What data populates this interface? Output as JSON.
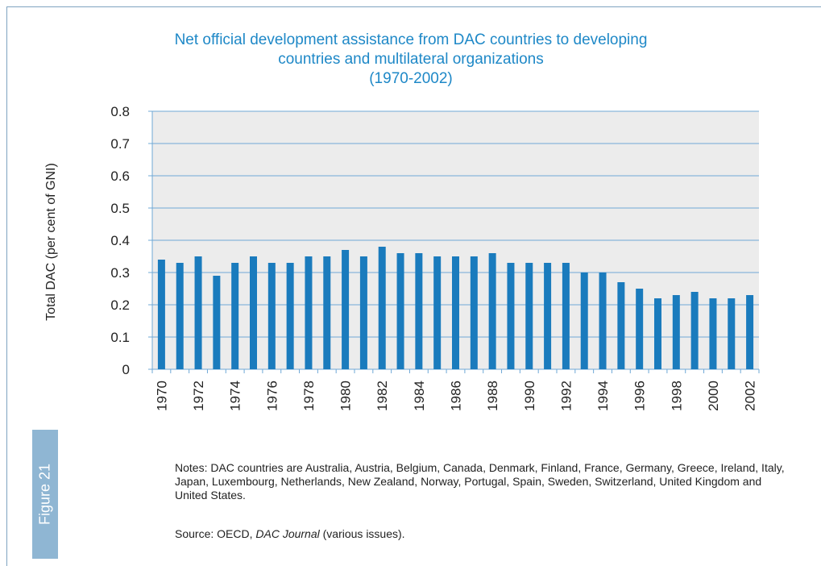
{
  "figure_label": "Figure 21",
  "notes": "Notes: DAC countries are Australia, Austria, Belgium, Canada, Denmark, Finland, France, Germany, Greece, Ireland, Italy, Japan, Luxembourg, Netherlands, New Zealand, Norway, Portugal, Spain, Sweden, Switzerland, United Kingdom and United States.",
  "source": {
    "prefix": "Source: OECD, ",
    "publication": "DAC Journal",
    "suffix": " (various issues)."
  },
  "chart_data": {
    "type": "bar",
    "title_lines": [
      "Net official development assistance from DAC countries to developing",
      "countries and multilateral organizations",
      "(1970-2002)"
    ],
    "ylabel": "Total DAC (per cent of GNI)",
    "xlabel": "",
    "ylim": [
      0,
      0.8
    ],
    "yticks": [
      "0",
      "0.1",
      "0.2",
      "0.3",
      "0.4",
      "0.5",
      "0.6",
      "0.7",
      "0.8"
    ],
    "categories": [
      "1970",
      "1971",
      "1972",
      "1973",
      "1974",
      "1975",
      "1976",
      "1977",
      "1978",
      "1979",
      "1980",
      "1981",
      "1982",
      "1983",
      "1984",
      "1985",
      "1986",
      "1987",
      "1988",
      "1989",
      "1990",
      "1991",
      "1992",
      "1993",
      "1994",
      "1995",
      "1996",
      "1997",
      "1998",
      "1999",
      "2000",
      "2001",
      "2002"
    ],
    "x_tick_labels": [
      "1970",
      "",
      "1972",
      "",
      "1974",
      "",
      "1976",
      "",
      "1978",
      "",
      "1980",
      "",
      "1982",
      "",
      "1984",
      "",
      "1986",
      "",
      "1988",
      "",
      "1990",
      "",
      "1992",
      "",
      "1994",
      "",
      "1996",
      "",
      "1998",
      "",
      "2000",
      "",
      "2002"
    ],
    "values": [
      0.34,
      0.33,
      0.35,
      0.29,
      0.33,
      0.35,
      0.33,
      0.33,
      0.35,
      0.35,
      0.37,
      0.35,
      0.38,
      0.36,
      0.36,
      0.35,
      0.35,
      0.35,
      0.36,
      0.33,
      0.33,
      0.33,
      0.33,
      0.3,
      0.3,
      0.27,
      0.25,
      0.22,
      0.23,
      0.24,
      0.22,
      0.22,
      0.23
    ],
    "grid": true,
    "legend": "none",
    "colors": {
      "bar": "#1a7bbd",
      "plot_background": "#ececec",
      "gridline": "#6fa8d6",
      "title": "#1e88c7"
    }
  }
}
